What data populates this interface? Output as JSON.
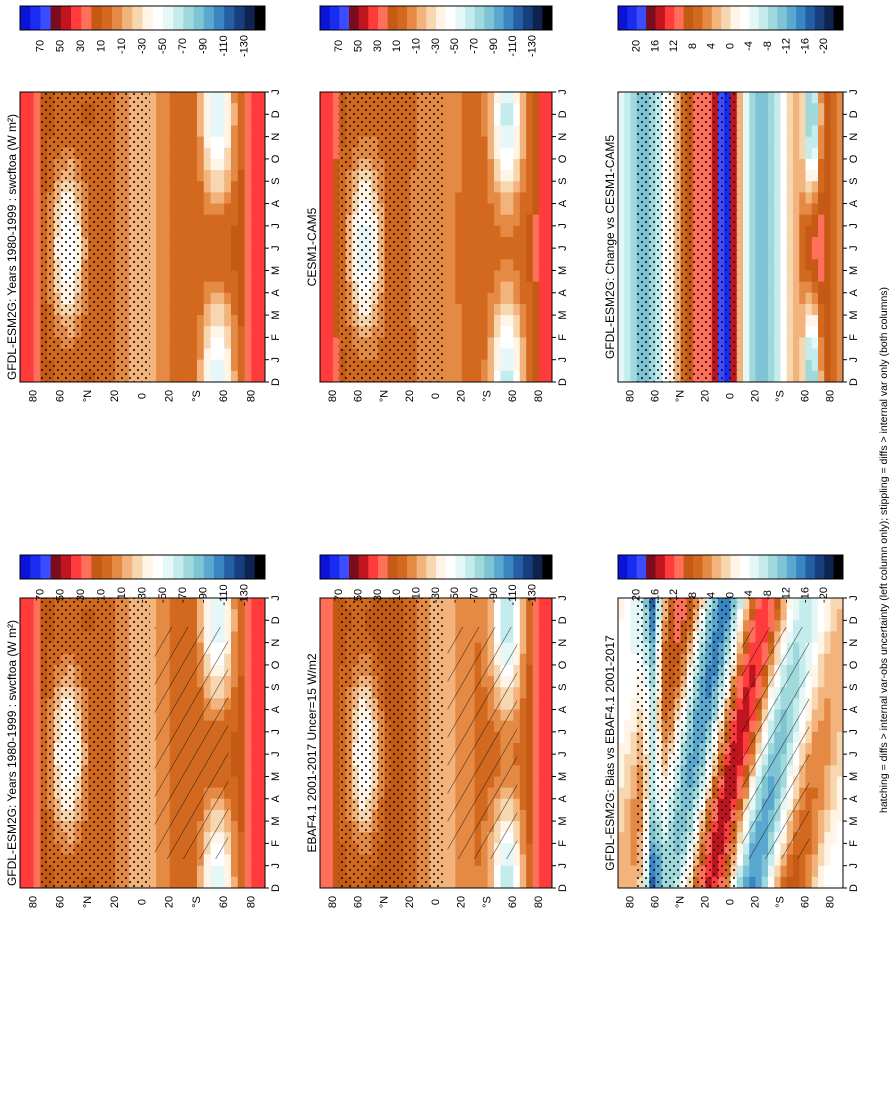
{
  "footnote": "hatching = diffs > internal var-obs uncertainty (left column only); stippling = diffs > internal var only (both columns)",
  "months": [
    "D",
    "J",
    "F",
    "M",
    "A",
    "M",
    "J",
    "J",
    "A",
    "S",
    "O",
    "N",
    "D",
    "J"
  ],
  "lat_ticks": [
    "80",
    "60",
    "°N",
    "20",
    "0",
    "20",
    "°S",
    "60",
    "80"
  ],
  "chart_data": [
    {
      "type": "heatmap",
      "title": "GFDL-ESM2G: Years 1980-1999 : swcftoa (W m²)",
      "x": "month",
      "y": "latitude",
      "field": "base_model",
      "colorbar": {
        "labels": [
          "70",
          "50",
          "30",
          "10",
          "-10",
          "-30",
          "-50",
          "-70",
          "-90",
          "-110",
          "-130"
        ]
      },
      "hatching": true,
      "stippling": true
    },
    {
      "type": "heatmap",
      "title": "GFDL-ESM2G: Years 1980-1999 : swcftoa (W m²)",
      "x": "month",
      "y": "latitude",
      "field": "base_model",
      "colorbar": {
        "labels": [
          "70",
          "50",
          "30",
          "10",
          "-10",
          "-30",
          "-50",
          "-70",
          "-90",
          "-110",
          "-130"
        ]
      },
      "hatching": false,
      "stippling": true
    },
    {
      "type": "heatmap",
      "title": "EBAF4.1 2001-2017 Uncer=15 W/m2",
      "x": "month",
      "y": "latitude",
      "field": "obs",
      "colorbar": {
        "labels": [
          "70",
          "50",
          "30",
          "10",
          "-10",
          "-30",
          "-50",
          "-70",
          "-90",
          "-110",
          "-130"
        ]
      },
      "hatching": true,
      "stippling": true
    },
    {
      "type": "heatmap",
      "title": "CESM1-CAM5",
      "x": "month",
      "y": "latitude",
      "field": "other_model",
      "colorbar": {
        "labels": [
          "70",
          "50",
          "30",
          "10",
          "-10",
          "-30",
          "-50",
          "-70",
          "-90",
          "-110",
          "-130"
        ]
      },
      "hatching": false,
      "stippling": true
    },
    {
      "type": "heatmap",
      "title": "GFDL-ESM2G: Bias vs EBAF4.1 2001-2017",
      "x": "month",
      "y": "latitude",
      "field": "bias",
      "colorbar": {
        "labels": [
          "20",
          "16",
          "12",
          "8",
          "4",
          "0",
          "-4",
          "-8",
          "-12",
          "-16",
          "-20"
        ]
      },
      "hatching": true,
      "stippling": true
    },
    {
      "type": "heatmap",
      "title": "GFDL-ESM2G: Change vs CESM1-CAM5",
      "x": "month",
      "y": "latitude",
      "field": "change",
      "colorbar": {
        "labels": [
          "20",
          "16",
          "12",
          "8",
          "4",
          "0",
          "-4",
          "-8",
          "-12",
          "-16",
          "-20"
        ]
      },
      "hatching": false,
      "stippling": true
    }
  ],
  "palette": {
    "swatches": [
      "#0b14d6",
      "#1a2cf0",
      "#3c4cff",
      "#7a0c1e",
      "#c0141e",
      "#ff3b3b",
      "#ff6f5a",
      "#c45a14",
      "#d2691e",
      "#e58a45",
      "#f2b37c",
      "#f7d7b0",
      "#fff4e6",
      "#ffffff",
      "#e6f7f7",
      "#c5ecec",
      "#9fd9dc",
      "#7fc4d4",
      "#5aa8cf",
      "#3a86c2",
      "#245fa6",
      "#183f7d",
      "#0e2350",
      "#000000"
    ],
    "level_count": 24,
    "border": "#000000"
  }
}
